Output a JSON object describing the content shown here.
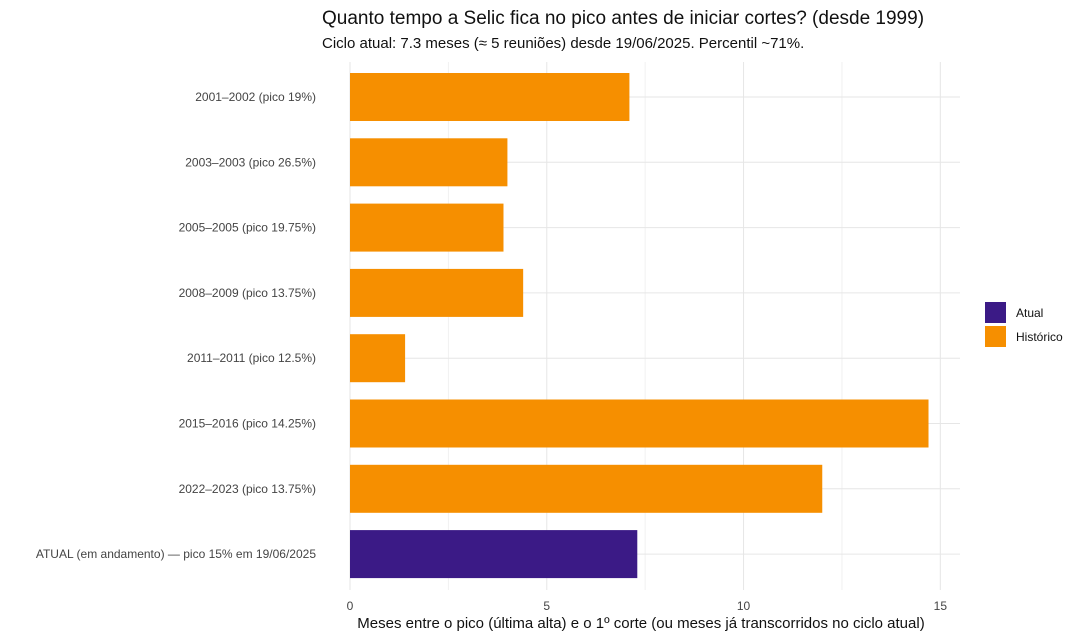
{
  "chart_data": {
    "type": "bar",
    "orientation": "horizontal",
    "title": "Quanto tempo a Selic fica no pico antes de iniciar cortes? (desde 1999)",
    "subtitle": "Ciclo atual: 7.3 meses (≈ 5 reuniões) desde 19/06/2025. Percentil ~71%.",
    "xlabel": "Meses entre o pico (última alta) e o 1º corte (ou meses já transcorridos no ciclo atual)",
    "ylabel": "",
    "xlim": [
      0,
      15.5
    ],
    "x_ticks": [
      0,
      5,
      10,
      15
    ],
    "grid": true,
    "legend": {
      "position": "right",
      "entries": [
        {
          "label": "Atual",
          "color": "#3b1a86"
        },
        {
          "label": "Histórico",
          "color": "#f68f00"
        }
      ]
    },
    "categories": [
      "2001–2002 (pico 19%)",
      "2003–2003 (pico 26.5%)",
      "2005–2005 (pico 19.75%)",
      "2008–2009 (pico 13.75%)",
      "2011–2011 (pico 12.5%)",
      "2015–2016 (pico 14.25%)",
      "2022–2023 (pico 13.75%)",
      "ATUAL (em andamento) — pico 15% em 19/06/2025"
    ],
    "values": [
      7.1,
      4.0,
      3.9,
      4.4,
      1.4,
      14.7,
      12.0,
      7.3
    ],
    "groups": [
      "Histórico",
      "Histórico",
      "Histórico",
      "Histórico",
      "Histórico",
      "Histórico",
      "Histórico",
      "Atual"
    ]
  }
}
